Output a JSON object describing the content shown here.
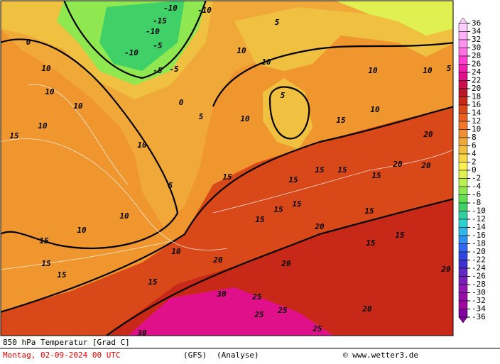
{
  "map": {
    "contour_labels": [
      0,
      0,
      -5,
      -10,
      -10,
      -15,
      -10,
      -5,
      -5,
      -10,
      5,
      5,
      5,
      10,
      10,
      10,
      10,
      10,
      10,
      10,
      10,
      10,
      10,
      10,
      15,
      15,
      15,
      15,
      15,
      15,
      15,
      15,
      15,
      15,
      15,
      15,
      15,
      15,
      15,
      20,
      20,
      20,
      20,
      20,
      20,
      20,
      25,
      25,
      25,
      25,
      30,
      30,
      10,
      5,
      10,
      15,
      15,
      20,
      5,
      10
    ],
    "colorbar": {
      "ticks": [
        36,
        34,
        32,
        30,
        28,
        26,
        24,
        22,
        20,
        18,
        16,
        14,
        12,
        10,
        8,
        6,
        4,
        2,
        0,
        -2,
        -4,
        -6,
        -8,
        -10,
        -12,
        -14,
        -16,
        -18,
        -20,
        -22,
        -24,
        -26,
        -28,
        -30,
        -32,
        -34,
        -36
      ],
      "colors": [
        "#ffd0ff",
        "#ffb0f8",
        "#ff90f0",
        "#ff70e0",
        "#ff40d0",
        "#f020b0",
        "#e0108a",
        "#c8104a",
        "#b81828",
        "#c82818",
        "#d84818",
        "#e86020",
        "#f07828",
        "#f09030",
        "#f0a838",
        "#f0c040",
        "#f8d848",
        "#f8f050",
        "#e0f050",
        "#b8f050",
        "#90e850",
        "#60e050",
        "#40d068",
        "#30d0a0",
        "#30d0d0",
        "#30b8e8",
        "#3090f0",
        "#3068f0",
        "#3048e0",
        "#4030d0",
        "#6028c0",
        "#7820b8",
        "#9018b0",
        "#9810a8",
        "#a008a0",
        "#8000a0"
      ]
    }
  },
  "footer": {
    "title": "850 hPa Temperatur [Grad C]",
    "date": "Montag, 02-09-2024  00 UTC",
    "model": "(GFS)",
    "run": "(Analyse)",
    "credit": "© www.wetter3.de"
  }
}
